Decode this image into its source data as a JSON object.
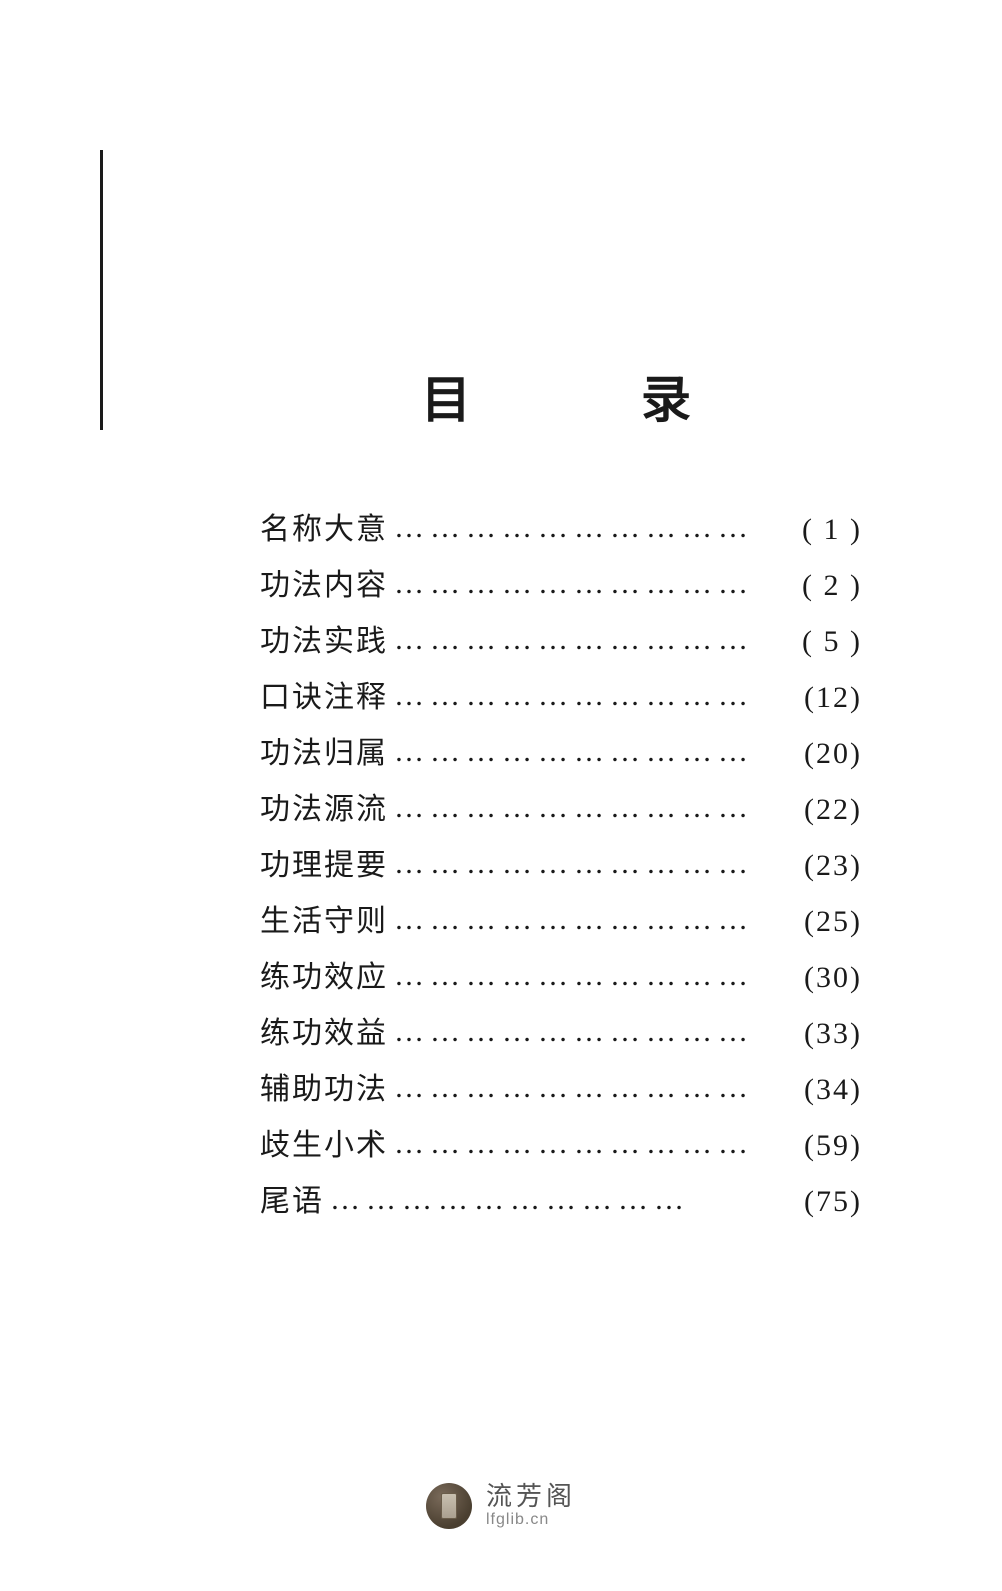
{
  "title": "目　录",
  "entries": [
    {
      "label": "名称大意",
      "page": "( 1 )"
    },
    {
      "label": "功法内容",
      "page": "( 2 )"
    },
    {
      "label": "功法实践",
      "page": "( 5 )"
    },
    {
      "label": "口诀注释",
      "page": "(12)"
    },
    {
      "label": "功法归属",
      "page": "(20)"
    },
    {
      "label": "功法源流",
      "page": "(22)"
    },
    {
      "label": "功理提要",
      "page": "(23)"
    },
    {
      "label": "生活守则",
      "page": "(25)"
    },
    {
      "label": "练功效应",
      "page": "(30)"
    },
    {
      "label": "练功效益",
      "page": "(33)"
    },
    {
      "label": "辅助功法",
      "page": "(34)"
    },
    {
      "label": "歧生小术",
      "page": "(59)"
    },
    {
      "label": "尾语",
      "page": "(75)"
    }
  ],
  "leader": "…………………………",
  "footer": {
    "title": "流芳阁",
    "url": "lfglib.cn"
  },
  "colors": {
    "text": "#1a1a1a",
    "footer_title": "#555555",
    "footer_url": "#888888",
    "background": "#ffffff"
  }
}
